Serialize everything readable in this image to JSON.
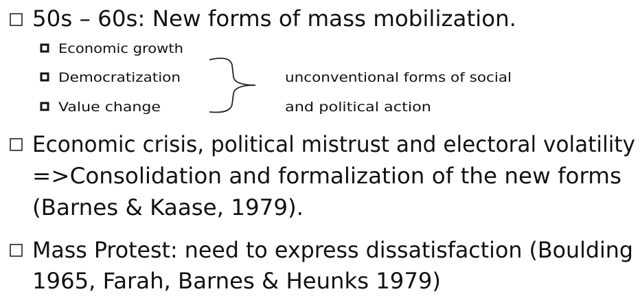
{
  "bullets": [
    {
      "lines": [
        "50s – 60s: New forms of mass mobilization."
      ],
      "sub_bullets": [
        "Economic growth",
        "Democratization",
        "Value change"
      ],
      "annotation": [
        "unconventional forms of social",
        "and political action"
      ]
    },
    {
      "lines": [
        "Economic crisis, political mistrust and electoral volatility",
        "=>Consolidation and formalization of the new forms",
        "(Barnes & Kaase, 1979)."
      ]
    },
    {
      "lines": [
        "Mass Protest: need to express dissatisfaction (Boulding",
        "1965, Farah, Barnes & Heunks 1979)"
      ]
    }
  ]
}
